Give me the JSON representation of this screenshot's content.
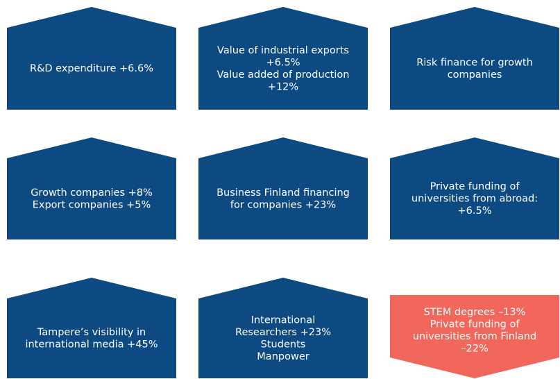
{
  "tiles": [
    {
      "lines": [
        "R&D expenditure +6.6%"
      ],
      "color": "#0d4a82",
      "arrow": "up"
    },
    {
      "lines": [
        "Value of industrial exports",
        "+6.5%",
        "Value added of production",
        "+12%"
      ],
      "color": "#0d4a82",
      "arrow": "up"
    },
    {
      "lines": [
        "Risk finance for growth",
        "companies"
      ],
      "color": "#0d4a82",
      "arrow": "up"
    },
    {
      "lines": [
        "Growth companies +8%",
        "Export companies +5%"
      ],
      "color": "#0d4a82",
      "arrow": "up"
    },
    {
      "lines": [
        "Business Finland financing",
        "for companies +23%"
      ],
      "color": "#0d4a82",
      "arrow": "up"
    },
    {
      "lines": [
        "Private funding of",
        "universities from abroad:",
        "+6.5%"
      ],
      "color": "#0d4a82",
      "arrow": "up"
    },
    {
      "lines": [
        "Tampere’s visibility in",
        "international media +45%"
      ],
      "color": "#0d4a82",
      "arrow": "up"
    },
    {
      "lines": [
        "International",
        "Researchers +23%",
        "Students",
        "Manpower"
      ],
      "color": "#0d4a82",
      "arrow": "up"
    },
    {
      "lines": [
        "STEM degrees –13%",
        "Private funding of",
        "universities from Finland",
        "–22%"
      ],
      "color": "#f2675b",
      "arrow": "down"
    }
  ]
}
